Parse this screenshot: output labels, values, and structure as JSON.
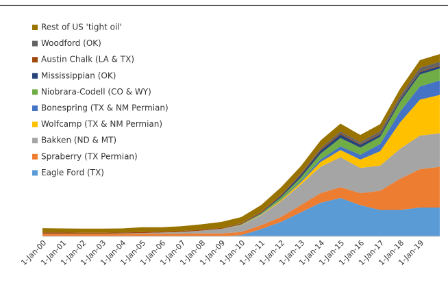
{
  "chart_data": {
    "type": "stacked_area",
    "categories": [
      "1-Jan-00",
      "1-Jan-01",
      "1-Jan-02",
      "1-Jan-03",
      "1-Jan-04",
      "1-Jan-05",
      "1-Jan-06",
      "1-Jan-07",
      "1-Jan-08",
      "1-Jan-09",
      "1-Jan-10",
      "1-Jan-11",
      "1-Jan-12",
      "1-Jan-13",
      "1-Jan-14",
      "1-Jan-15",
      "1-Jan-16",
      "1-Jan-17",
      "1-Jan-18",
      "1-Jan-19",
      null
    ],
    "ylim": [
      0,
      8
    ],
    "legend": "top-left",
    "series": [
      {
        "name": "Eagle Ford (TX)",
        "color": "#5b9bd5",
        "values": [
          0,
          0,
          0,
          0,
          0,
          0,
          0,
          0,
          0,
          0,
          0.05,
          0.3,
          0.6,
          1.0,
          1.4,
          1.6,
          1.3,
          1.1,
          1.1,
          1.2,
          1.2
        ]
      },
      {
        "name": "Spraberry (TX Permian)",
        "color": "#ed7d31",
        "values": [
          0.1,
          0.1,
          0.1,
          0.1,
          0.1,
          0.11,
          0.11,
          0.11,
          0.12,
          0.12,
          0.13,
          0.16,
          0.2,
          0.3,
          0.4,
          0.45,
          0.5,
          0.8,
          1.3,
          1.6,
          1.7
        ]
      },
      {
        "name": "Bakken (ND & MT)",
        "color": "#a5a5a5",
        "values": [
          0.01,
          0.01,
          0.01,
          0.01,
          0.02,
          0.03,
          0.05,
          0.07,
          0.12,
          0.18,
          0.28,
          0.42,
          0.65,
          0.85,
          1.1,
          1.25,
          1.05,
          1.05,
          1.25,
          1.4,
          1.4
        ]
      },
      {
        "name": "Wolfcamp (TX & NM Permian)",
        "color": "#ffc000",
        "values": [
          0,
          0,
          0,
          0,
          0,
          0,
          0,
          0,
          0,
          0,
          0.01,
          0.02,
          0.05,
          0.1,
          0.2,
          0.3,
          0.35,
          0.6,
          1.1,
          1.5,
          1.6
        ]
      },
      {
        "name": "Bonespring (TX & NM Permian)",
        "color": "#4472c4",
        "values": [
          0,
          0,
          0,
          0,
          0,
          0,
          0,
          0,
          0,
          0,
          0,
          0.01,
          0.02,
          0.05,
          0.1,
          0.15,
          0.2,
          0.3,
          0.45,
          0.55,
          0.6
        ]
      },
      {
        "name": "Niobrara-Codell (CO & WY)",
        "color": "#70ad47",
        "values": [
          0,
          0,
          0,
          0,
          0,
          0,
          0,
          0,
          0,
          0.01,
          0.02,
          0.04,
          0.1,
          0.15,
          0.25,
          0.35,
          0.3,
          0.3,
          0.4,
          0.5,
          0.5
        ]
      },
      {
        "name": "Mississippian (OK)",
        "color": "#264478",
        "values": [
          0,
          0,
          0,
          0,
          0,
          0,
          0,
          0,
          0,
          0,
          0.01,
          0.03,
          0.06,
          0.1,
          0.13,
          0.15,
          0.12,
          0.1,
          0.1,
          0.1,
          0.1
        ]
      },
      {
        "name": "Austin Chalk (LA & TX)",
        "color": "#9e480e",
        "values": [
          0.05,
          0.05,
          0.04,
          0.04,
          0.04,
          0.04,
          0.04,
          0.04,
          0.04,
          0.04,
          0.04,
          0.04,
          0.04,
          0.04,
          0.04,
          0.04,
          0.03,
          0.03,
          0.03,
          0.03,
          0.03
        ]
      },
      {
        "name": "Woodford (OK)",
        "color": "#636363",
        "values": [
          0,
          0,
          0,
          0,
          0,
          0,
          0,
          0,
          0,
          0,
          0.01,
          0.01,
          0.02,
          0.03,
          0.05,
          0.08,
          0.08,
          0.1,
          0.12,
          0.15,
          0.15
        ]
      },
      {
        "name": "Rest of US 'tight oil'",
        "color": "#997300",
        "values": [
          0.18,
          0.17,
          0.17,
          0.17,
          0.17,
          0.2,
          0.18,
          0.2,
          0.22,
          0.25,
          0.25,
          0.27,
          0.3,
          0.3,
          0.33,
          0.33,
          0.3,
          0.3,
          0.3,
          0.32,
          0.32
        ]
      }
    ]
  }
}
